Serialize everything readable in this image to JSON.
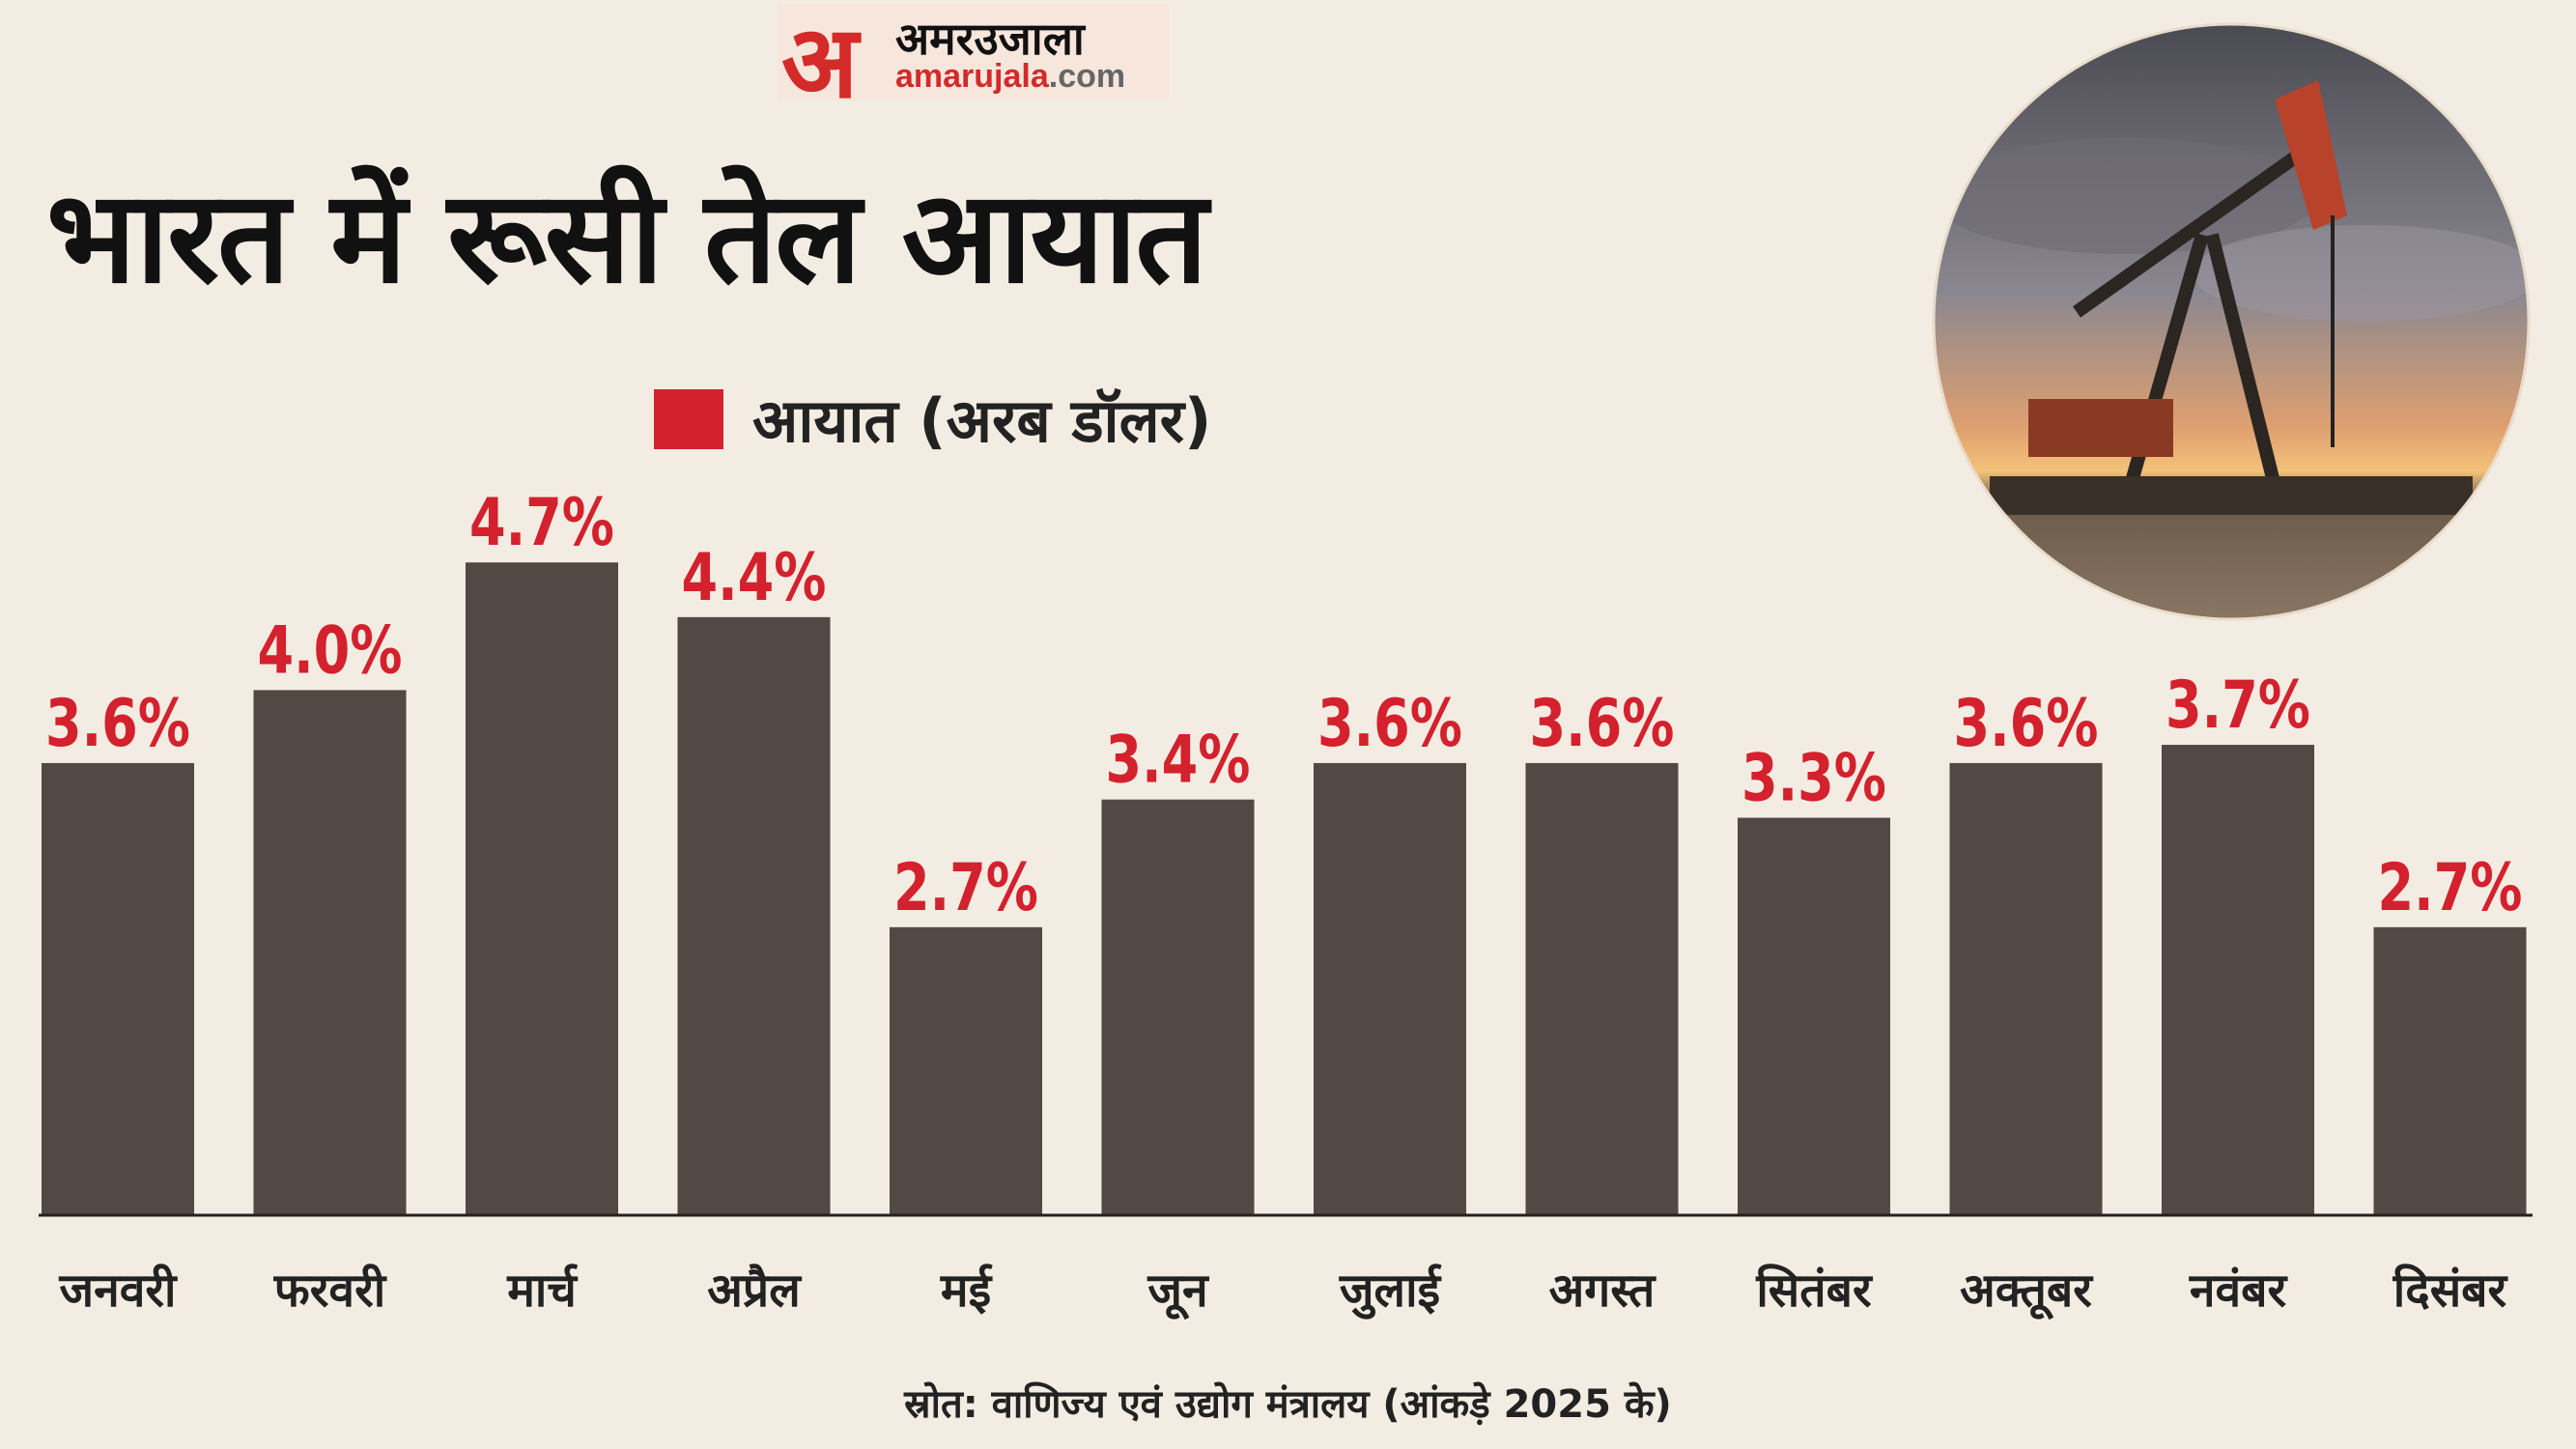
{
  "logo": {
    "mark": "अ",
    "hindi": "अमरउजाला",
    "site_main": "amarujala",
    "site_tld": ".com"
  },
  "title": "भारत में रूसी तेल आयात",
  "colors": {
    "bar": "#524844",
    "label": "#d3212d",
    "background": "#f3ece2"
  },
  "chart_data": {
    "type": "bar",
    "title": "भारत में रूसी तेल आयात",
    "legend": [
      {
        "name": "आयात (अरब डॉलर)",
        "color": "#d3212d"
      }
    ],
    "legend_position": "top-left",
    "grid": false,
    "categories": [
      "जनवरी",
      "फरवरी",
      "मार्च",
      "अप्रैल",
      "मई",
      "जून",
      "जुलाई",
      "अगस्त",
      "सितंबर",
      "अक्तूबर",
      "नवंबर",
      "दिसंबर"
    ],
    "values": [
      3.6,
      4.0,
      4.7,
      4.4,
      2.7,
      3.4,
      3.6,
      3.6,
      3.3,
      3.6,
      3.7,
      2.7
    ],
    "data_labels": [
      "3.6%",
      "4.0%",
      "4.7%",
      "4.4%",
      "2.7%",
      "3.4%",
      "3.6%",
      "3.6%",
      "3.3%",
      "3.6%",
      "3.7%",
      "2.7%"
    ]
  },
  "source": "स्रोत: वाणिज्य एवं उद्योग मंत्रालय (आंकड़े  2025 के)"
}
